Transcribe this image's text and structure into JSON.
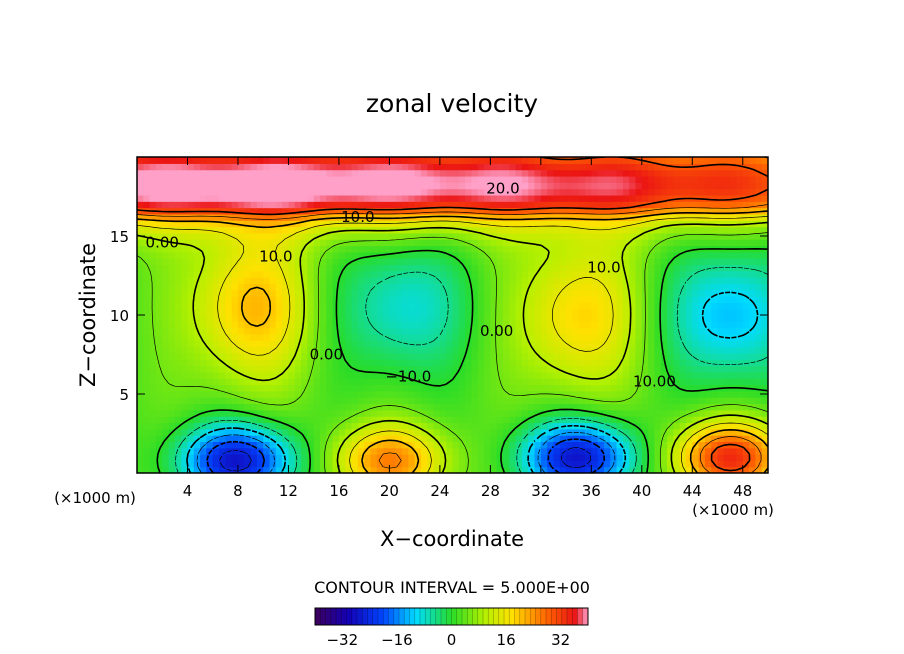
{
  "chart_data": {
    "type": "heatmap",
    "title": "zonal velocity",
    "xlabel": "X−coordinate",
    "ylabel": "Z−coordinate",
    "x_unit_left": "(×1000 m)",
    "x_unit_right": "(×1000 m)",
    "xlim": [
      0,
      50
    ],
    "ylim": [
      0,
      20
    ],
    "x_ticks": [
      4,
      8,
      12,
      16,
      20,
      24,
      28,
      32,
      36,
      40,
      44,
      48
    ],
    "x_tick_labels": [
      "4",
      "8",
      "12",
      "16",
      "20",
      "24",
      "28",
      "32",
      "36",
      "40",
      "44",
      "48"
    ],
    "y_ticks": [
      5,
      10,
      15
    ],
    "y_tick_labels": [
      "5",
      "10",
      "15"
    ],
    "contour_interval_text": "CONTOUR INTERVAL = 5.000E+00",
    "colorbar": {
      "min": -40,
      "max": 40,
      "ticks": [
        -32,
        -16,
        0,
        16,
        32
      ],
      "tick_labels": [
        "−32",
        "−16",
        "0",
        "16",
        "32"
      ]
    },
    "contour_labels": [
      {
        "text": "20.0",
        "x": 29,
        "y": 18.0
      },
      {
        "text": "10.0",
        "x": 17.5,
        "y": 16.2
      },
      {
        "text": "0.00",
        "x": 2,
        "y": 14.6
      },
      {
        "text": "10.0",
        "x": 11,
        "y": 13.7
      },
      {
        "text": "10.0",
        "x": 37,
        "y": 13.0
      },
      {
        "text": "0.00",
        "x": 15,
        "y": 7.5
      },
      {
        "text": "−10.0",
        "x": 21.5,
        "y": 6.1
      },
      {
        "text": "0.00",
        "x": 28.5,
        "y": 9.0
      },
      {
        "text": "10.00",
        "x": 41,
        "y": 5.8
      }
    ],
    "features": [
      {
        "type": "jet",
        "x": 10,
        "y": 18.3,
        "value": 30
      },
      {
        "type": "positive-max",
        "x": 9,
        "y": 10.5,
        "value": 18
      },
      {
        "type": "negative-min",
        "x": 21,
        "y": 10.5,
        "value": -12
      },
      {
        "type": "positive-max",
        "x": 35,
        "y": 10.0,
        "value": 16
      },
      {
        "type": "negative-min",
        "x": 47,
        "y": 10.0,
        "value": -16
      },
      {
        "type": "negative-min",
        "x": 8,
        "y": 0.8,
        "value": -30
      },
      {
        "type": "positive-max",
        "x": 20,
        "y": 0.8,
        "value": 22
      },
      {
        "type": "negative-min",
        "x": 35,
        "y": 1.0,
        "value": -30
      },
      {
        "type": "positive-max",
        "x": 47,
        "y": 1.0,
        "value": 30
      }
    ]
  }
}
